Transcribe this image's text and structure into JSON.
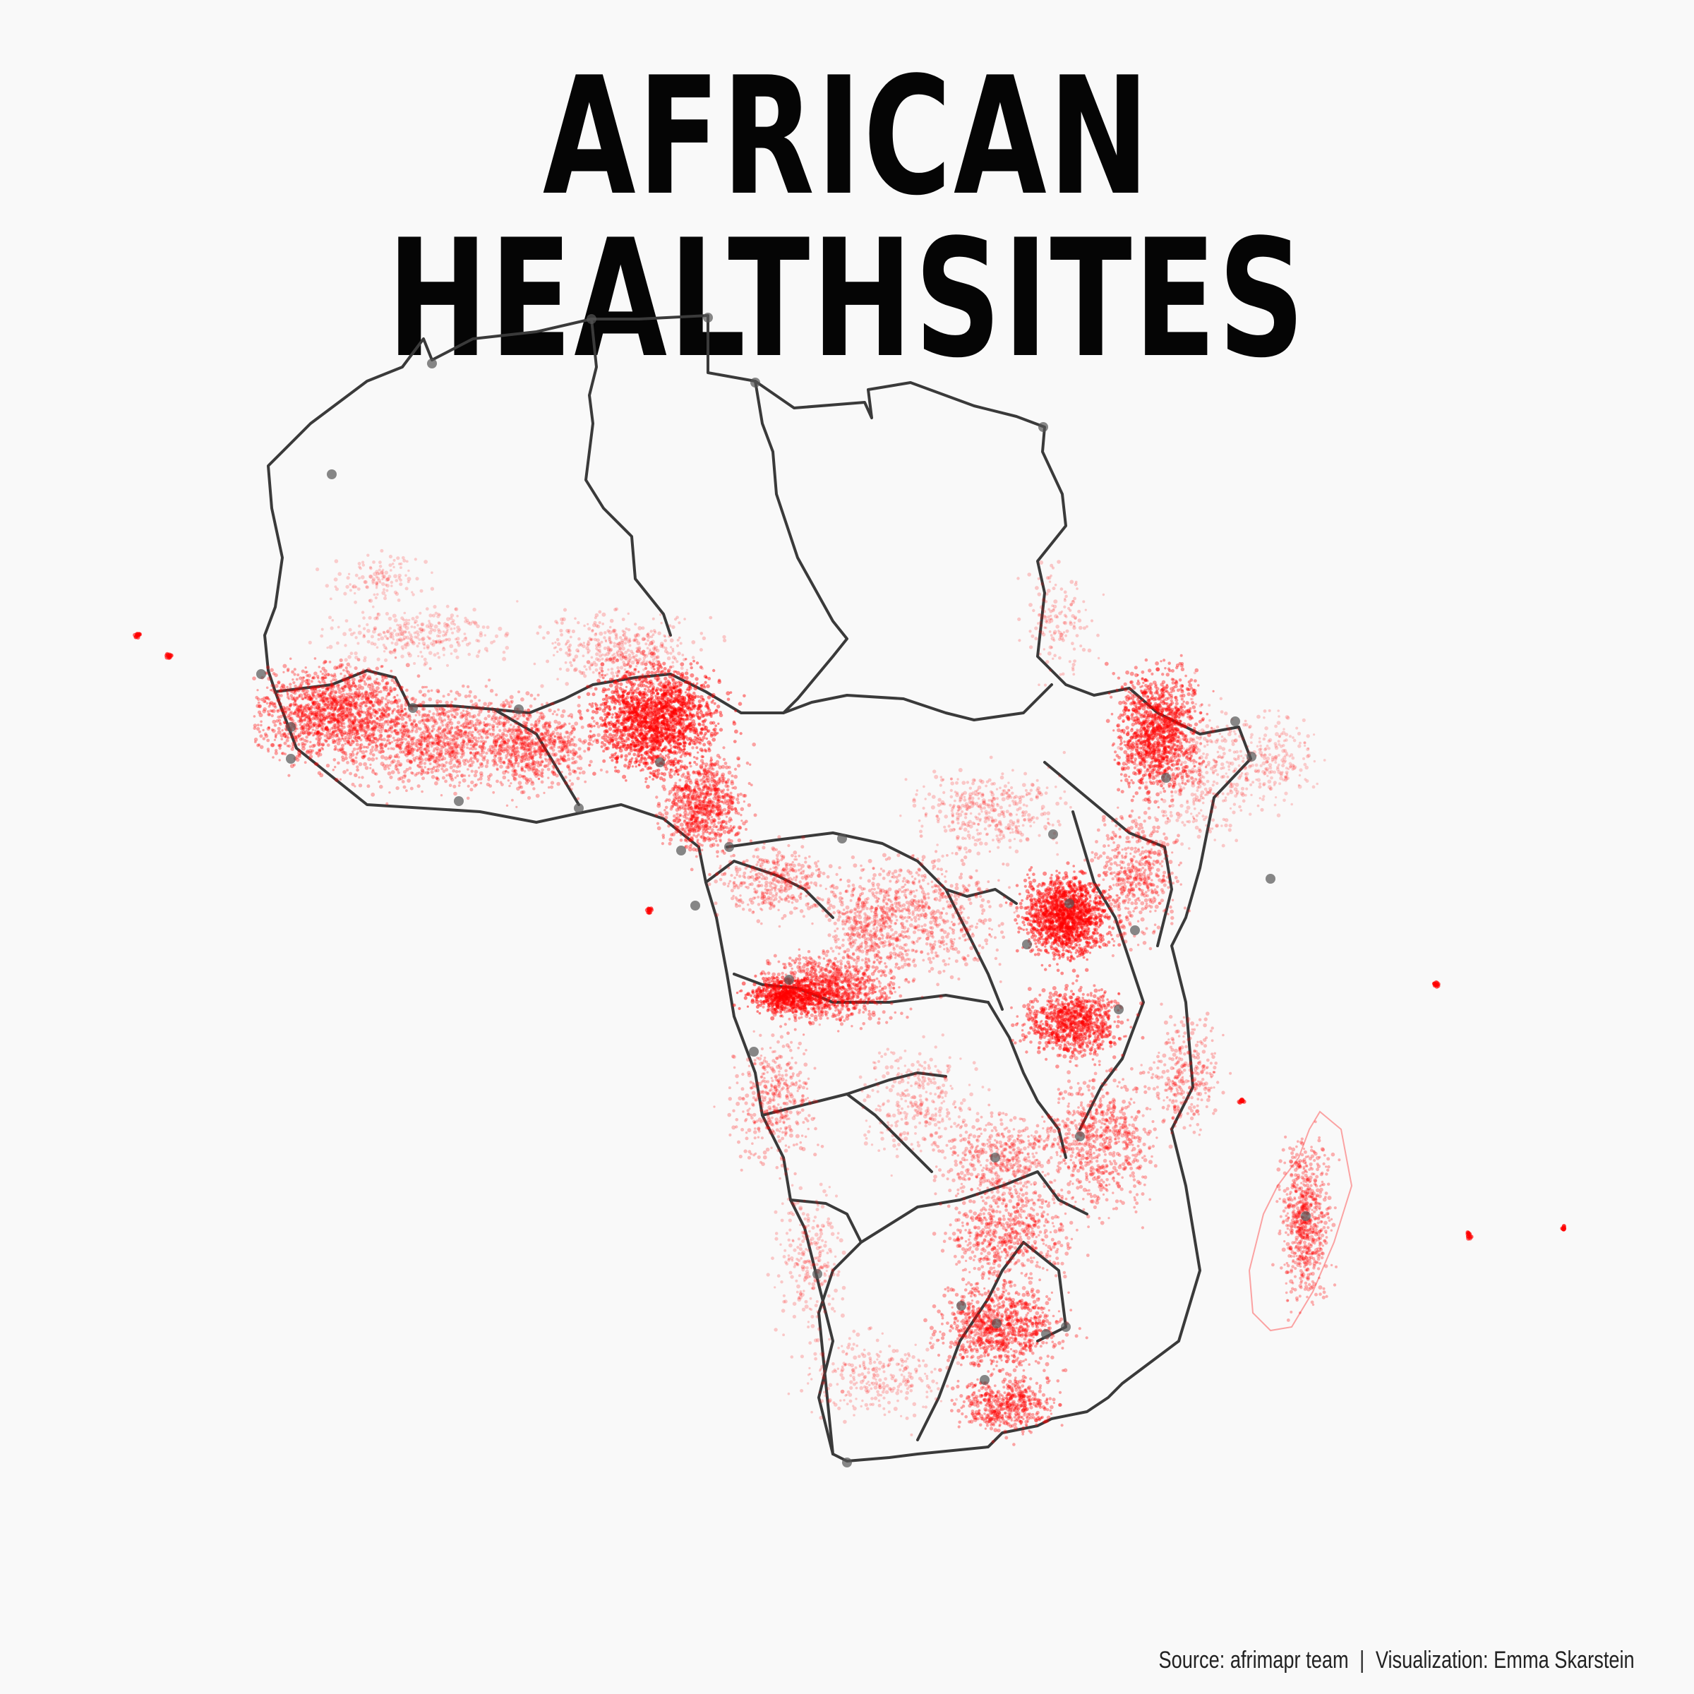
{
  "title": "AFRICAN HEALTHSITES",
  "caption": {
    "source": "Source: afrimapr team",
    "separator": "|",
    "credit": "Visualization: Emma Skarstein"
  },
  "map": {
    "region": "Africa",
    "point_color": "#ff0000",
    "border_color": "#3a3a3a",
    "city_marker_color": "#555555",
    "background": "#f9f9f9"
  }
}
